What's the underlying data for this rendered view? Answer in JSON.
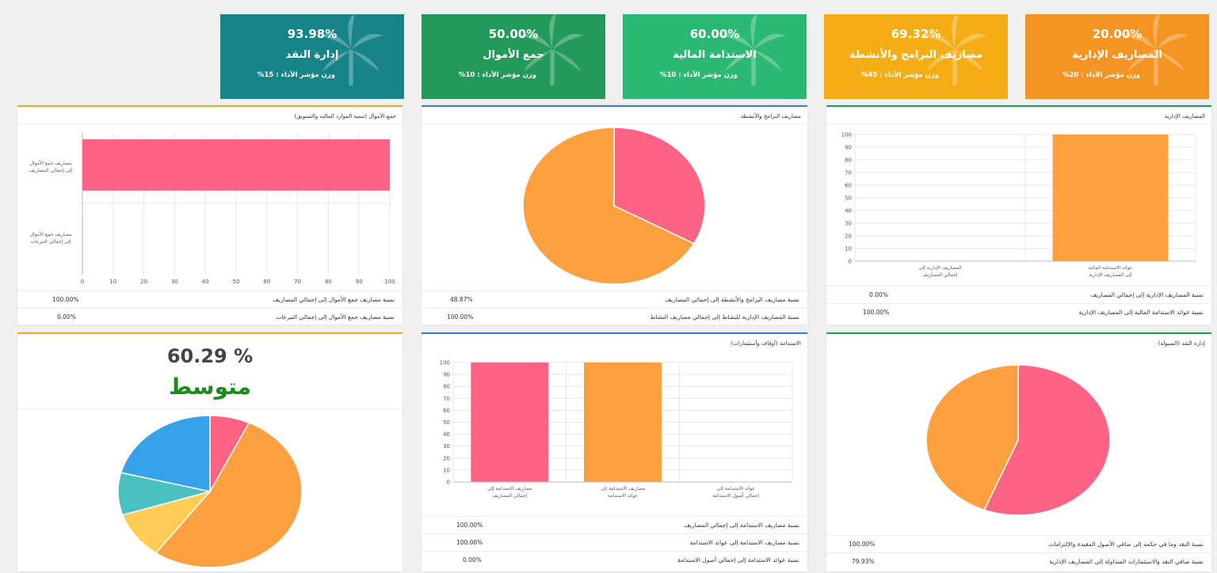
{
  "kpis": [
    {
      "percent": "93.98%",
      "name": "إدارة النقد",
      "weight": "وزن مؤشر الأداء : 15%",
      "color": "#168488"
    },
    {
      "percent": "50.00%",
      "name": "جمع الأموال",
      "weight": "وزن مؤشر الأداء : 10%",
      "color": "#23995a"
    },
    {
      "percent": "60.00%",
      "name": "الاستدامة المالية",
      "weight": "وزن مؤشر الأداء : 10%",
      "color": "#2bb873"
    },
    {
      "percent": "69.32%",
      "name": "مصاريف البرامج والأنشطة",
      "weight": "وزن مؤشر الأداء : 45%",
      "color": "#f5ad16"
    },
    {
      "percent": "20.00%",
      "name": "المصاريف الإدارية",
      "weight": "وزن مؤشر الأداء : 20%",
      "color": "#f49423"
    }
  ],
  "cards": {
    "fundraising": {
      "title": "جمع الأموال (تنمية الموارد المالية والتسويق)",
      "rows": [
        {
          "label": "نسبة مصاريف جمع الأموال إلى إجمالي المصاريف",
          "value": "100.00%"
        },
        {
          "label": "نسبة مصاريف جمع الأموال إلى إجمالي التبرعات",
          "value": "0.00%"
        }
      ]
    },
    "programs": {
      "title": "مصاريف البرامج والأنشطة",
      "rows": [
        {
          "label": "نسبة مصاريف البرامج والأنشطة إلى إجمالي المصاريف",
          "value": "48.87%"
        },
        {
          "label": "نسبة المصاريف الإدارية للنشاط إلى إجمالي مصاريف النشاط",
          "value": "100.00%"
        }
      ]
    },
    "admin": {
      "title": "المصاريف الإدارية",
      "rows": [
        {
          "label": "نسبة المصاريف الإدارية إلى إجمالي المصاريف",
          "value": "0.00%"
        },
        {
          "label": "نسبة عوائد الاستدامة المالية إلى المصاريف الإدارية",
          "value": "100.00%"
        }
      ]
    },
    "overall": {
      "percent": "60.29 %",
      "label": "متوسط"
    },
    "sustainability": {
      "title": "الاستدامة (أوقاف وأستثمارات)",
      "rows": [
        {
          "label": "نسبة مصاريف الاستدامة إلى إجمالي المصاريف",
          "value": "100.00%"
        },
        {
          "label": "نسبة مصاريف الاستدامة إلى عوائد الاستدامة",
          "value": "100.00%"
        },
        {
          "label": "نسبة عوائد الاستدامة إلى إجمالي أصول الاستدامة",
          "value": "0.00%"
        }
      ]
    },
    "cash": {
      "title": "إدارة النقد (السيولة)",
      "rows": [
        {
          "label": "نسبة النقد وما في حكمه إلى صافي الأصول المقيدة والإلتزامات",
          "value": "100.00%"
        },
        {
          "label": "نسبة صافي النقد والاستثمارات المتداولة إلى المصاريف الإدارية",
          "value": "79.93%"
        }
      ]
    }
  },
  "chart_data": [
    {
      "type": "bar",
      "orientation": "horizontal",
      "categories": [
        "مصاريف جمع الأموال إلى إجمالي المصاريف",
        "مصاريف جمع الأموال إلى إجمالي التبرعات"
      ],
      "values": [
        100,
        0
      ],
      "xlim": [
        0,
        100
      ],
      "ticks": [
        "0",
        "10",
        "20",
        "30",
        "40",
        "50",
        "60",
        "70",
        "80",
        "90",
        "100"
      ],
      "colors": [
        "#ff6384"
      ]
    },
    {
      "type": "pie",
      "values": [
        33,
        67
      ],
      "colors": [
        "#ff6384",
        "#ffa040"
      ]
    },
    {
      "type": "bar",
      "categories": [
        "المصاريف الإدارية إلى إجمالي المصاريف",
        "عوائد الاستدامة المالية إلى المصاريف الإدارية"
      ],
      "values": [
        0,
        100
      ],
      "ylim": [
        0,
        100
      ],
      "ticks": [
        "0",
        "10",
        "20",
        "30",
        "40",
        "50",
        "60",
        "70",
        "80",
        "90",
        "100"
      ],
      "colors": [
        "#ffa040"
      ]
    },
    {
      "type": "pie",
      "values": [
        7,
        53,
        10,
        9,
        21
      ],
      "colors": [
        "#ff6384",
        "#ffa040",
        "#ffcd56",
        "#4bc0c0",
        "#36a2eb"
      ]
    },
    {
      "type": "bar",
      "categories": [
        "مصاريف الاستدامة إلى إجمالي المصاريف",
        "مصاريف الاستدامة إلى عوائد الاستدامة",
        "عوائد الاستدامة إلى إجمالي أصول الاستدامة"
      ],
      "values": [
        100,
        100,
        0
      ],
      "ylim": [
        0,
        100
      ],
      "ticks": [
        "0",
        "10",
        "20",
        "30",
        "40",
        "50",
        "60",
        "70",
        "80",
        "90",
        "100"
      ],
      "colors": [
        "#ff6384",
        "#ffa040",
        "#36a2eb"
      ]
    },
    {
      "type": "pie",
      "values": [
        56,
        44
      ],
      "colors": [
        "#ff6384",
        "#ffa040"
      ]
    }
  ]
}
